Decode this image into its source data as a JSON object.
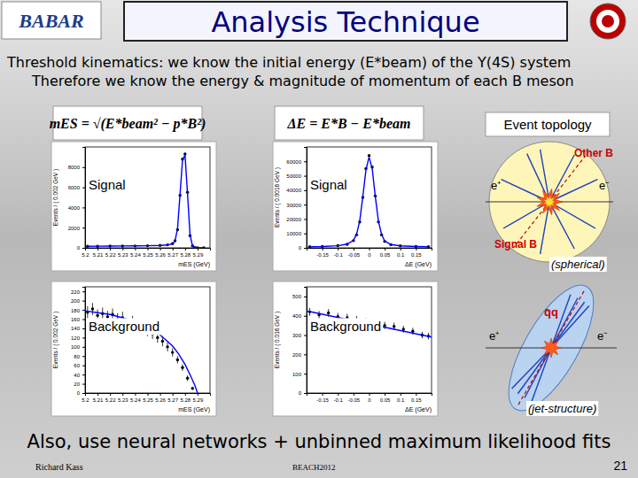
{
  "header": {
    "logo": "BABAR",
    "title": "Analysis Technique"
  },
  "intro": [
    "Threshold kinematics: we know the initial energy (E*beam) of the Υ(4S) system",
    "Therefore we know the energy & magnitude of momentum of each B meson"
  ],
  "formulas": [
    "mES = √(E*beam² − p*B²)",
    "ΔE = E*B − E*beam"
  ],
  "chart_data": [
    {
      "type": "scatter",
      "xlabel": "mES (GeV)",
      "ylabel": "Events / ( 0.002 GeV )",
      "annotations": [
        "Signal"
      ],
      "xlim": [
        5.2,
        5.3
      ],
      "xticks": [
        5.2,
        5.21,
        5.22,
        5.23,
        5.24,
        5.25,
        5.26,
        5.27,
        5.28,
        5.29
      ],
      "ylim": [
        0,
        10000
      ],
      "yticks": [
        0,
        2000,
        4000,
        6000,
        8000
      ],
      "series": [
        {
          "marker": "circle",
          "color": "#000000",
          "x": [
            5.202,
            5.21,
            5.22,
            5.23,
            5.24,
            5.25,
            5.26,
            5.266,
            5.27,
            5.272,
            5.274,
            5.276,
            5.278,
            5.28,
            5.282,
            5.284,
            5.286,
            5.288,
            5.29,
            5.295
          ],
          "values": [
            150,
            160,
            170,
            180,
            190,
            210,
            240,
            300,
            420,
            700,
            1800,
            5200,
            8800,
            9300,
            5500,
            1200,
            200,
            30,
            10,
            5
          ]
        },
        {
          "type": "line",
          "line_style": "solid",
          "color": "#0000ff",
          "x": [
            5.202,
            5.21,
            5.22,
            5.23,
            5.24,
            5.25,
            5.26,
            5.266,
            5.27,
            5.272,
            5.274,
            5.276,
            5.278,
            5.28,
            5.282,
            5.284,
            5.286,
            5.288,
            5.29,
            5.295
          ],
          "values": [
            155,
            162,
            172,
            182,
            194,
            208,
            235,
            290,
            400,
            680,
            1900,
            5300,
            8700,
            9200,
            5400,
            1300,
            180,
            20,
            5,
            0
          ]
        }
      ]
    },
    {
      "type": "scatter",
      "xlabel": "ΔE (GeV)",
      "ylabel": "Events / ( 0.0016 GeV )",
      "annotations": [
        "Signal"
      ],
      "xlim": [
        -0.2,
        0.2
      ],
      "xticks": [
        -0.15,
        -0.1,
        -0.05,
        0,
        0.05,
        0.1,
        0.15
      ],
      "ylim": [
        0,
        70000
      ],
      "yticks": [
        0,
        10000,
        20000,
        30000,
        40000,
        50000,
        60000
      ],
      "series": [
        {
          "marker": "circle",
          "color": "#000000",
          "x": [
            -0.19,
            -0.15,
            -0.1,
            -0.07,
            -0.05,
            -0.04,
            -0.03,
            -0.02,
            -0.01,
            0,
            0.01,
            0.02,
            0.03,
            0.04,
            0.05,
            0.07,
            0.1,
            0.15,
            0.19
          ],
          "values": [
            800,
            1000,
            1500,
            2500,
            5000,
            9000,
            18000,
            35000,
            55000,
            64000,
            56000,
            36000,
            18000,
            9000,
            4500,
            2200,
            1400,
            1000,
            800
          ]
        },
        {
          "type": "line",
          "line_style": "solid",
          "color": "#0000ff",
          "x": [
            -0.19,
            -0.15,
            -0.1,
            -0.07,
            -0.05,
            -0.04,
            -0.03,
            -0.02,
            -0.01,
            0,
            0.01,
            0.02,
            0.03,
            0.04,
            0.05,
            0.07,
            0.1,
            0.15,
            0.19
          ],
          "values": [
            750,
            950,
            1450,
            2600,
            5200,
            9400,
            18500,
            35500,
            54000,
            63000,
            55000,
            35500,
            18500,
            9400,
            4800,
            2300,
            1350,
            950,
            750
          ]
        }
      ]
    },
    {
      "type": "scatter",
      "xlabel": "mES (GeV)",
      "ylabel": "Events / ( 0.002 GeV )",
      "annotations": [
        "Background"
      ],
      "xlim": [
        5.2,
        5.3
      ],
      "xticks": [
        5.2,
        5.21,
        5.22,
        5.23,
        5.24,
        5.25,
        5.26,
        5.27,
        5.28,
        5.29
      ],
      "ylim": [
        0,
        230
      ],
      "yticks": [
        0,
        20,
        40,
        60,
        80,
        100,
        120,
        140,
        160,
        180,
        200,
        220
      ],
      "series": [
        {
          "marker": "circle",
          "color": "#000000",
          "x": [
            5.202,
            5.206,
            5.21,
            5.214,
            5.218,
            5.222,
            5.226,
            5.23,
            5.234,
            5.238,
            5.242,
            5.246,
            5.25,
            5.254,
            5.258,
            5.262,
            5.266,
            5.27,
            5.274,
            5.278,
            5.282,
            5.286
          ],
          "values": [
            175,
            182,
            168,
            172,
            165,
            170,
            160,
            163,
            150,
            155,
            148,
            140,
            135,
            128,
            120,
            112,
            100,
            88,
            72,
            55,
            32,
            10
          ],
          "errors": [
            13,
            13,
            13,
            13,
            13,
            13,
            13,
            13,
            12,
            12,
            12,
            12,
            12,
            11,
            11,
            11,
            10,
            9,
            8,
            7,
            6,
            3
          ]
        },
        {
          "type": "line",
          "line_style": "solid",
          "color": "#0000ff",
          "x": [
            5.2,
            5.21,
            5.22,
            5.23,
            5.24,
            5.25,
            5.26,
            5.27,
            5.275,
            5.28,
            5.285,
            5.288,
            5.29
          ],
          "values": [
            178,
            174,
            170,
            163,
            154,
            142,
            126,
            102,
            84,
            62,
            34,
            16,
            0
          ]
        }
      ]
    },
    {
      "type": "scatter",
      "xlabel": "ΔE (GeV)",
      "ylabel": "Events / ( 0.016 GeV )",
      "annotations": [
        "Background"
      ],
      "xlim": [
        -0.2,
        0.2
      ],
      "xticks": [
        -0.15,
        -0.1,
        -0.05,
        0,
        0.05,
        0.1,
        0.15
      ],
      "ylim": [
        0,
        550
      ],
      "yticks": [
        0,
        100,
        200,
        300,
        400,
        500
      ],
      "series": [
        {
          "marker": "circle",
          "color": "#000000",
          "x": [
            -0.19,
            -0.16,
            -0.13,
            -0.1,
            -0.07,
            -0.04,
            -0.01,
            0.02,
            0.05,
            0.08,
            0.11,
            0.14,
            0.17,
            0.19
          ],
          "values": [
            420,
            405,
            415,
            395,
            390,
            380,
            370,
            365,
            350,
            345,
            330,
            320,
            300,
            295
          ],
          "errors": [
            20,
            20,
            20,
            20,
            20,
            19,
            19,
            19,
            19,
            19,
            18,
            18,
            17,
            17
          ]
        },
        {
          "type": "line",
          "line_style": "solid",
          "color": "#0000ff",
          "x": [
            -0.2,
            0.2
          ],
          "values": [
            425,
            290
          ]
        }
      ]
    }
  ],
  "topology": {
    "title": "Event topology",
    "spherical": {
      "other": "Other B",
      "e_plus": "e⁺",
      "e_minus": "e⁻",
      "signal": "Signal B",
      "caption": "(spherical)"
    },
    "jet": {
      "pair": "q̄q",
      "e_plus": "e⁺",
      "e_minus": "e⁻",
      "caption": "(jet-structure)"
    }
  },
  "footer": {
    "note": "Also, use neural networks + unbinned maximum likelihood fits",
    "author": "Richard Kass",
    "conference": "BEACH2012",
    "page": 21
  }
}
